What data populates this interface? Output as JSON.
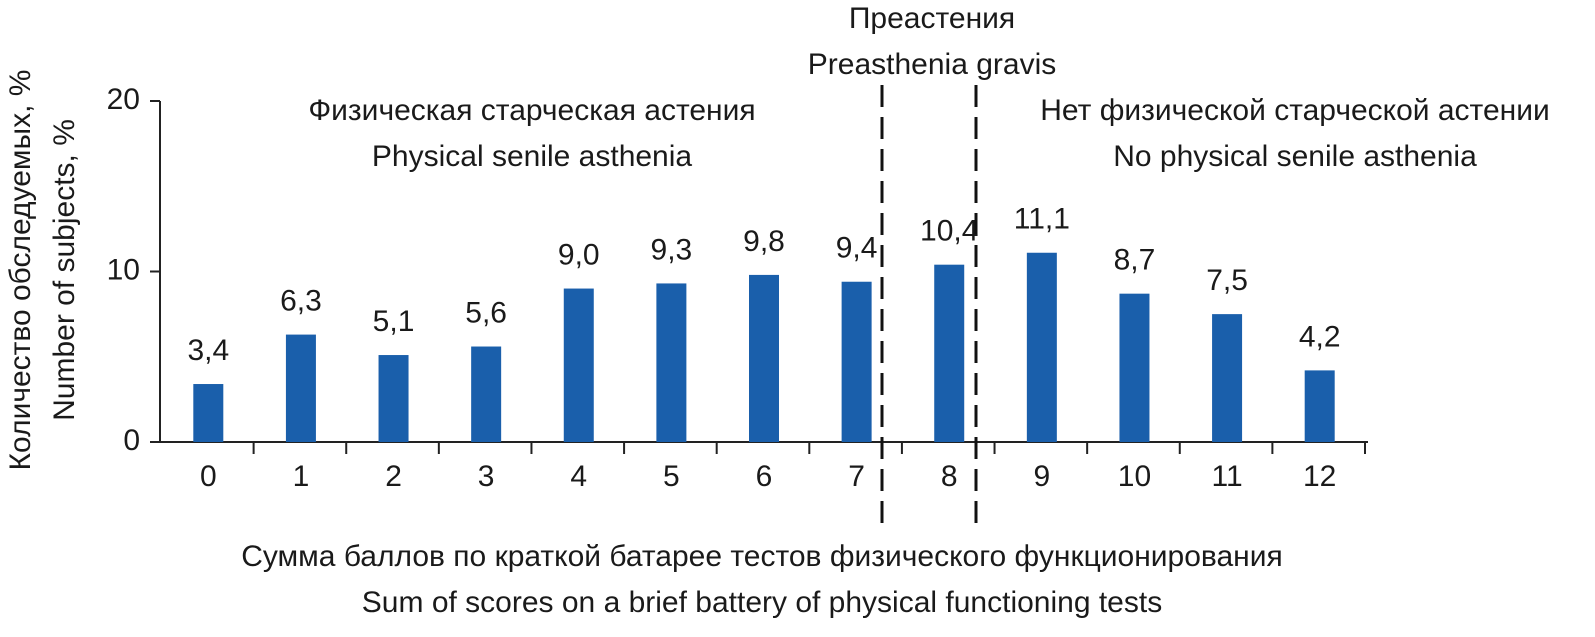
{
  "chart_data": {
    "type": "bar",
    "categories": [
      "0",
      "1",
      "2",
      "3",
      "4",
      "5",
      "6",
      "7",
      "8",
      "9",
      "10",
      "11",
      "12"
    ],
    "values": [
      3.4,
      6.3,
      5.1,
      5.6,
      9.0,
      9.3,
      9.8,
      9.4,
      10.4,
      11.1,
      8.7,
      7.5,
      4.2
    ],
    "value_labels": [
      "3,4",
      "6,3",
      "5,1",
      "5,6",
      "9,0",
      "9,3",
      "9,8",
      "9,4",
      "10,4",
      "11,1",
      "8,7",
      "7,5",
      "4,2"
    ],
    "color": "#1a5fab",
    "ylim": [
      0,
      20
    ],
    "yticks": [
      0,
      10,
      20
    ],
    "grid": false,
    "ylabel": [
      "Количество обследуемых, %",
      "Number of subjects, %"
    ],
    "xlabel": [
      "Сумма баллов по краткой батарее тестов физического функционирования",
      "Sum of scores on a brief battery of physical functioning tests"
    ],
    "annotations": [
      "Физическая старческая астения",
      "Physical senile asthenia",
      "Преастения",
      "Preasthenia gravis",
      "Нет физической старческой астении",
      "No physical senile asthenia"
    ]
  }
}
